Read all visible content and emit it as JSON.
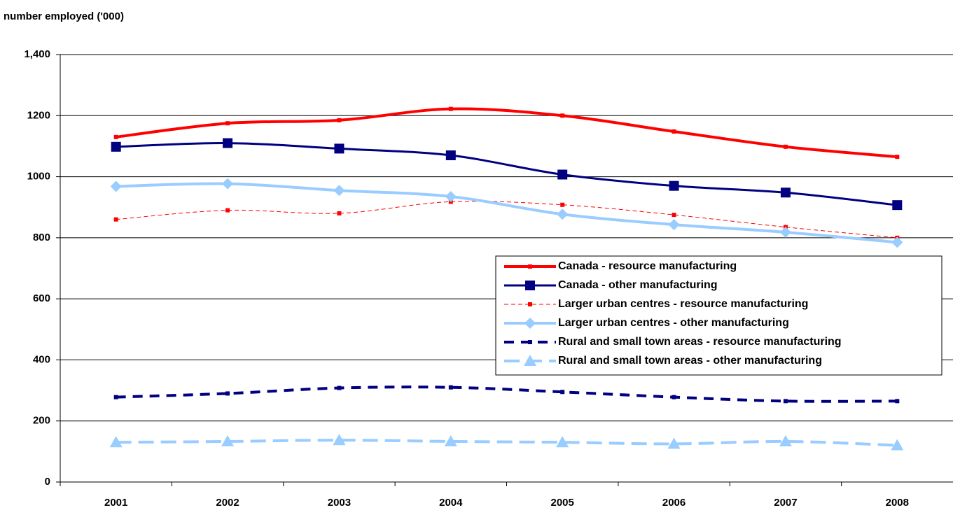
{
  "chart_data": {
    "type": "line",
    "title": "number employed ('000)",
    "categories": [
      "2001",
      "2002",
      "2003",
      "2004",
      "2005",
      "2006",
      "2007",
      "2008"
    ],
    "series": [
      {
        "name": "Canada - resource manufacturing",
        "color": "#ff0000",
        "line_style": "solid",
        "marker": "square-small",
        "values": [
          1130,
          1175,
          1185,
          1222,
          1200,
          1148,
          1098,
          1065
        ]
      },
      {
        "name": "Canada - other manufacturing",
        "color": "#000080",
        "line_style": "solid",
        "marker": "square",
        "values": [
          1098,
          1110,
          1092,
          1070,
          1007,
          970,
          948,
          907
        ]
      },
      {
        "name": "Larger urban centres - resource manufacturing",
        "color": "#ff0000",
        "line_style": "dashed",
        "marker": "square-small",
        "values": [
          860,
          890,
          880,
          918,
          908,
          875,
          835,
          800
        ]
      },
      {
        "name": "Larger urban centres - other manufacturing",
        "color": "#99ccff",
        "line_style": "solid",
        "marker": "diamond",
        "values": [
          968,
          977,
          955,
          935,
          877,
          843,
          818,
          785
        ]
      },
      {
        "name": "Rural and small town areas - resource manufacturing",
        "color": "#000080",
        "line_style": "dashed",
        "marker": "square-small",
        "values": [
          278,
          290,
          308,
          310,
          295,
          278,
          265,
          265
        ]
      },
      {
        "name": "Rural and small town areas - other manufacturing",
        "color": "#99ccff",
        "line_style": "dashed",
        "marker": "triangle",
        "values": [
          130,
          133,
          137,
          133,
          130,
          125,
          133,
          120
        ]
      }
    ],
    "ylim": [
      0,
      1400
    ],
    "yticks": [
      0,
      200,
      400,
      600,
      800,
      1000,
      1200,
      {
        "value": 1400,
        "label": "1,400"
      }
    ],
    "grid": true,
    "legend": "right"
  }
}
